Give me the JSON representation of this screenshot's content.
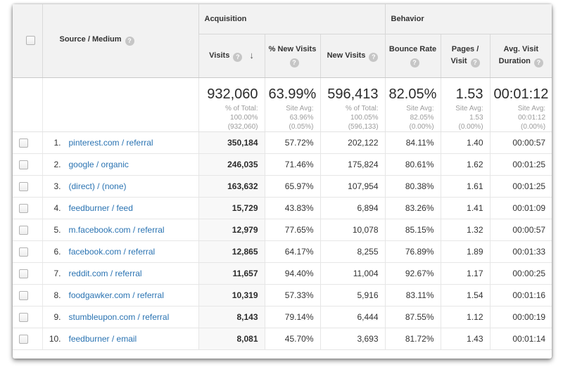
{
  "icons": {
    "help": "?",
    "sort_desc": "↓"
  },
  "colors": {
    "link": "#2a73b2",
    "header_bg": "#f2f2f2",
    "sorted_column_bg": "#f8f8f8"
  },
  "header": {
    "source_column_label": "Source / Medium",
    "groups": [
      {
        "label": "Acquisition"
      },
      {
        "label": "Behavior"
      }
    ],
    "columns": [
      {
        "label": "Visits"
      },
      {
        "label": "% New Visits"
      },
      {
        "label": "New Visits"
      },
      {
        "label": "Bounce Rate"
      },
      {
        "label": "Pages / Visit"
      },
      {
        "label": "Avg. Visit Duration"
      }
    ]
  },
  "summary": [
    {
      "value": "932,060",
      "sub": "% of Total: 100.00% (932,060)"
    },
    {
      "value": "63.99%",
      "sub": "Site Avg: 63.96% (0.05%)"
    },
    {
      "value": "596,413",
      "sub": "% of Total: 100.05% (596,133)"
    },
    {
      "value": "82.05%",
      "sub": "Site Avg: 82.05% (0.00%)"
    },
    {
      "value": "1.53",
      "sub": "Site Avg: 1.53 (0.00%)"
    },
    {
      "value": "00:01:12",
      "sub": "Site Avg: 00:01:12 (0.00%)"
    }
  ],
  "rows": [
    {
      "num": "1.",
      "source": "pinterest.com / referral",
      "visits": "350,184",
      "pct_new_visits": "57.72%",
      "new_visits": "202,122",
      "bounce_rate": "84.11%",
      "pages_per_visit": "1.40",
      "avg_duration": "00:00:57"
    },
    {
      "num": "2.",
      "source": "google / organic",
      "visits": "246,035",
      "pct_new_visits": "71.46%",
      "new_visits": "175,824",
      "bounce_rate": "80.61%",
      "pages_per_visit": "1.62",
      "avg_duration": "00:01:25"
    },
    {
      "num": "3.",
      "source": "(direct) / (none)",
      "visits": "163,632",
      "pct_new_visits": "65.97%",
      "new_visits": "107,954",
      "bounce_rate": "80.38%",
      "pages_per_visit": "1.61",
      "avg_duration": "00:01:25"
    },
    {
      "num": "4.",
      "source": "feedburner / feed",
      "visits": "15,729",
      "pct_new_visits": "43.83%",
      "new_visits": "6,894",
      "bounce_rate": "83.26%",
      "pages_per_visit": "1.41",
      "avg_duration": "00:01:09"
    },
    {
      "num": "5.",
      "source": "m.facebook.com / referral",
      "visits": "12,979",
      "pct_new_visits": "77.65%",
      "new_visits": "10,078",
      "bounce_rate": "85.15%",
      "pages_per_visit": "1.32",
      "avg_duration": "00:00:57"
    },
    {
      "num": "6.",
      "source": "facebook.com / referral",
      "visits": "12,865",
      "pct_new_visits": "64.17%",
      "new_visits": "8,255",
      "bounce_rate": "76.89%",
      "pages_per_visit": "1.89",
      "avg_duration": "00:01:33"
    },
    {
      "num": "7.",
      "source": "reddit.com / referral",
      "visits": "11,657",
      "pct_new_visits": "94.40%",
      "new_visits": "11,004",
      "bounce_rate": "92.67%",
      "pages_per_visit": "1.17",
      "avg_duration": "00:00:25"
    },
    {
      "num": "8.",
      "source": "foodgawker.com / referral",
      "visits": "10,319",
      "pct_new_visits": "57.33%",
      "new_visits": "5,916",
      "bounce_rate": "83.11%",
      "pages_per_visit": "1.54",
      "avg_duration": "00:01:16"
    },
    {
      "num": "9.",
      "source": "stumbleupon.com / referral",
      "visits": "8,143",
      "pct_new_visits": "79.14%",
      "new_visits": "6,444",
      "bounce_rate": "87.55%",
      "pages_per_visit": "1.12",
      "avg_duration": "00:00:19"
    },
    {
      "num": "10.",
      "source": "feedburner / email",
      "visits": "8,081",
      "pct_new_visits": "45.70%",
      "new_visits": "3,693",
      "bounce_rate": "81.72%",
      "pages_per_visit": "1.43",
      "avg_duration": "00:01:14"
    }
  ]
}
